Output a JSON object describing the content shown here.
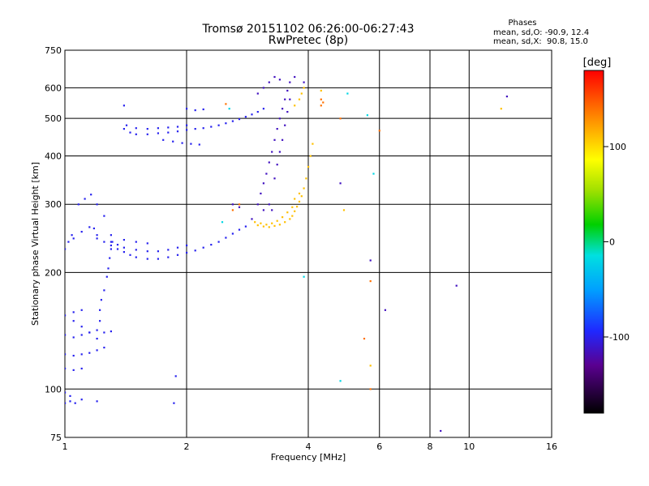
{
  "chart_data": {
    "type": "scatter",
    "title": "Tromsø 20151102 06:26:00-06:27:43",
    "subtitle": "RwPretec (8p)",
    "xlabel": "Frequency [MHz]",
    "ylabel": "Stationary phase Virtual Height [km]",
    "xscale": "log",
    "yscale": "log",
    "xlim": [
      1,
      16
    ],
    "ylim": [
      75,
      750
    ],
    "xticks": [
      1,
      2,
      4,
      6,
      8,
      10,
      16
    ],
    "yticks": [
      75,
      100,
      200,
      300,
      400,
      500,
      600,
      750
    ],
    "grid": true,
    "phases_legend": {
      "title": "Phases",
      "line1": "mean, sd,O: -90.9, 12.4",
      "line2": "mean, sd,X:  90.8, 15.0"
    },
    "colorbar": {
      "label": "[deg]",
      "range": [
        -180,
        180
      ],
      "ticks": [
        100,
        0,
        -100
      ],
      "placement": "right"
    },
    "series": [
      {
        "phase_deg": -100,
        "points": [
          [
            1.0,
            92
          ],
          [
            1.03,
            93
          ],
          [
            1.06,
            92
          ],
          [
            1.1,
            94
          ],
          [
            1.2,
            93
          ],
          [
            1.0,
            113
          ],
          [
            1.05,
            112
          ],
          [
            1.1,
            113
          ],
          [
            1.0,
            123
          ],
          [
            1.05,
            122
          ],
          [
            1.1,
            123
          ],
          [
            1.15,
            124
          ],
          [
            1.2,
            126
          ],
          [
            1.25,
            128
          ],
          [
            1.0,
            138
          ],
          [
            1.05,
            136
          ],
          [
            1.1,
            138
          ],
          [
            1.15,
            140
          ],
          [
            1.2,
            142
          ],
          [
            1.25,
            140
          ],
          [
            1.3,
            141
          ],
          [
            1.22,
            150
          ],
          [
            1.22,
            160
          ],
          [
            1.23,
            170
          ],
          [
            1.25,
            180
          ],
          [
            1.27,
            195
          ],
          [
            1.28,
            205
          ],
          [
            1.29,
            218
          ],
          [
            1.3,
            230
          ],
          [
            1.31,
            240
          ],
          [
            1.05,
            245
          ],
          [
            1.1,
            255
          ],
          [
            1.15,
            262
          ],
          [
            1.18,
            260
          ],
          [
            1.2,
            245
          ],
          [
            1.25,
            240
          ],
          [
            1.3,
            235
          ],
          [
            1.35,
            230
          ],
          [
            1.4,
            226
          ],
          [
            1.45,
            222
          ],
          [
            1.5,
            219
          ],
          [
            1.6,
            217
          ],
          [
            1.7,
            217
          ],
          [
            1.8,
            219
          ],
          [
            1.9,
            222
          ],
          [
            2.0,
            225
          ],
          [
            2.1,
            228
          ],
          [
            2.2,
            232
          ],
          [
            2.3,
            236
          ],
          [
            2.4,
            240
          ],
          [
            2.5,
            246
          ],
          [
            2.6,
            252
          ],
          [
            2.7,
            258
          ],
          [
            2.8,
            263
          ],
          [
            1.3,
            240
          ],
          [
            1.35,
            236
          ],
          [
            1.4,
            232
          ],
          [
            1.5,
            229
          ],
          [
            1.6,
            227
          ],
          [
            1.7,
            227
          ],
          [
            1.8,
            229
          ],
          [
            1.9,
            232
          ],
          [
            2.0,
            235
          ],
          [
            1.2,
            250
          ],
          [
            1.3,
            250
          ],
          [
            1.4,
            243
          ],
          [
            1.5,
            240
          ],
          [
            1.6,
            238
          ],
          [
            1.0,
            230
          ],
          [
            1.02,
            240
          ],
          [
            1.04,
            250
          ],
          [
            1.08,
            300
          ],
          [
            1.12,
            310
          ],
          [
            1.16,
            318
          ],
          [
            1.2,
            300
          ],
          [
            1.25,
            280
          ],
          [
            1.4,
            470
          ],
          [
            1.45,
            460
          ],
          [
            1.5,
            455
          ],
          [
            1.6,
            455
          ],
          [
            1.7,
            458
          ],
          [
            1.8,
            460
          ],
          [
            1.9,
            463
          ],
          [
            2.0,
            467
          ],
          [
            2.1,
            470
          ],
          [
            2.2,
            472
          ],
          [
            2.3,
            476
          ],
          [
            2.4,
            480
          ],
          [
            2.5,
            486
          ],
          [
            2.6,
            492
          ],
          [
            2.7,
            498
          ],
          [
            2.8,
            505
          ],
          [
            2.9,
            512
          ],
          [
            3.0,
            520
          ],
          [
            3.1,
            530
          ],
          [
            1.42,
            480
          ],
          [
            1.5,
            472
          ],
          [
            1.6,
            470
          ],
          [
            1.7,
            472
          ],
          [
            1.8,
            474
          ],
          [
            1.9,
            476
          ],
          [
            2.0,
            480
          ],
          [
            1.75,
            440
          ],
          [
            1.85,
            436
          ],
          [
            1.95,
            432
          ],
          [
            2.05,
            430
          ],
          [
            2.15,
            428
          ],
          [
            1.4,
            540
          ],
          [
            2.0,
            530
          ],
          [
            2.1,
            525
          ],
          [
            2.2,
            528
          ],
          [
            1.0,
            98
          ],
          [
            1.03,
            96
          ],
          [
            1.86,
            92
          ],
          [
            1.88,
            108
          ],
          [
            1.05,
            150
          ],
          [
            1.1,
            145
          ],
          [
            1.15,
            140
          ],
          [
            1.2,
            135
          ],
          [
            1.0,
            155
          ],
          [
            1.05,
            158
          ],
          [
            1.1,
            160
          ]
        ]
      },
      {
        "phase_deg": -115,
        "points": [
          [
            2.9,
            275
          ],
          [
            3.0,
            300
          ],
          [
            3.05,
            320
          ],
          [
            3.1,
            340
          ],
          [
            3.15,
            360
          ],
          [
            3.2,
            385
          ],
          [
            3.25,
            410
          ],
          [
            3.3,
            440
          ],
          [
            3.35,
            470
          ],
          [
            3.4,
            500
          ],
          [
            3.45,
            530
          ],
          [
            3.5,
            560
          ],
          [
            3.55,
            590
          ],
          [
            3.6,
            620
          ],
          [
            3.0,
            580
          ],
          [
            3.1,
            600
          ],
          [
            3.2,
            620
          ],
          [
            3.3,
            640
          ],
          [
            3.4,
            630
          ],
          [
            3.3,
            350
          ],
          [
            3.35,
            380
          ],
          [
            3.4,
            410
          ],
          [
            3.45,
            440
          ],
          [
            3.5,
            480
          ],
          [
            3.55,
            520
          ],
          [
            3.6,
            560
          ],
          [
            3.1,
            290
          ],
          [
            3.2,
            300
          ],
          [
            3.25,
            290
          ],
          [
            2.6,
            300
          ],
          [
            2.7,
            295
          ],
          [
            3.9,
            620
          ],
          [
            3.7,
            640
          ],
          [
            4.8,
            340
          ],
          [
            5.7,
            215
          ],
          [
            6.2,
            160
          ],
          [
            9.3,
            185
          ],
          [
            8.5,
            78
          ],
          [
            12.4,
            570
          ]
        ]
      },
      {
        "phase_deg": 110,
        "points": [
          [
            3.0,
            265
          ],
          [
            3.1,
            263
          ],
          [
            3.2,
            262
          ],
          [
            3.3,
            264
          ],
          [
            3.4,
            266
          ],
          [
            3.5,
            270
          ],
          [
            3.6,
            275
          ],
          [
            3.65,
            280
          ],
          [
            3.7,
            288
          ],
          [
            3.75,
            296
          ],
          [
            3.8,
            305
          ],
          [
            3.85,
            315
          ],
          [
            3.9,
            330
          ],
          [
            3.95,
            350
          ],
          [
            4.0,
            375
          ],
          [
            4.05,
            400
          ],
          [
            4.1,
            430
          ],
          [
            2.95,
            270
          ],
          [
            3.05,
            268
          ],
          [
            3.15,
            266
          ],
          [
            3.25,
            268
          ],
          [
            3.35,
            272
          ],
          [
            3.45,
            278
          ],
          [
            3.55,
            286
          ],
          [
            3.65,
            295
          ],
          [
            3.7,
            310
          ],
          [
            3.8,
            320
          ],
          [
            3.9,
            600
          ],
          [
            3.85,
            580
          ],
          [
            3.8,
            560
          ],
          [
            3.7,
            540
          ],
          [
            4.9,
            290
          ],
          [
            4.3,
            590
          ],
          [
            5.7,
            115
          ],
          [
            12.0,
            530
          ]
        ]
      },
      {
        "phase_deg": 140,
        "points": [
          [
            4.3,
            540
          ],
          [
            4.35,
            550
          ],
          [
            4.3,
            560
          ],
          [
            2.7,
            300
          ],
          [
            2.6,
            290
          ],
          [
            2.5,
            545
          ],
          [
            5.5,
            135
          ],
          [
            5.7,
            100
          ],
          [
            4.8,
            500
          ],
          [
            5.7,
            190
          ],
          [
            6.0,
            465
          ]
        ]
      },
      {
        "phase_deg": -20,
        "points": [
          [
            2.55,
            530
          ],
          [
            5.0,
            580
          ],
          [
            3.9,
            195
          ],
          [
            5.8,
            360
          ],
          [
            4.8,
            105
          ],
          [
            5.6,
            510
          ],
          [
            2.45,
            270
          ]
        ]
      }
    ]
  }
}
